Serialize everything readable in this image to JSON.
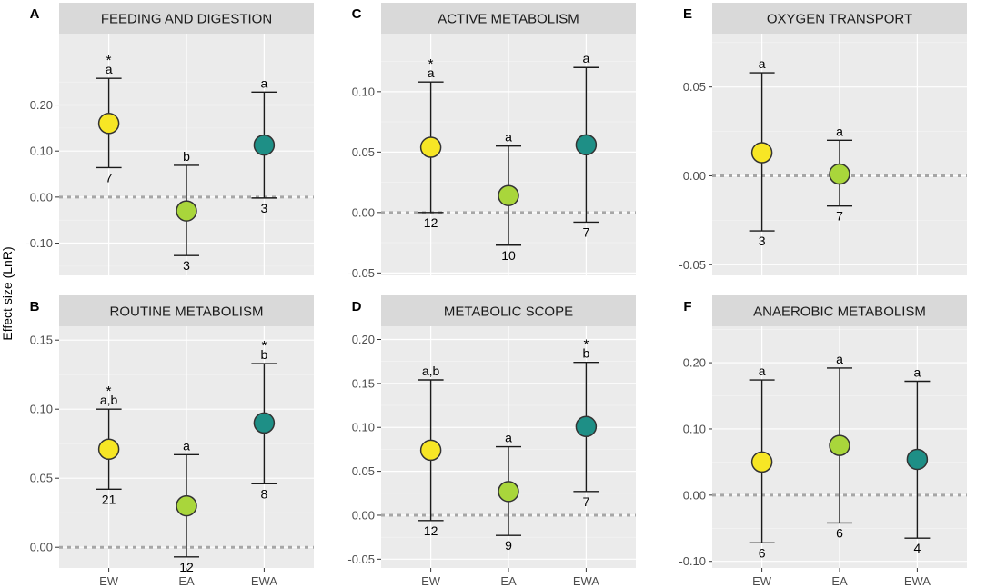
{
  "colors": {
    "EW": "#f7e625",
    "EA": "#a9d63b",
    "EWA": "#1e8f86",
    "panel_bg": "#ebebeb",
    "strip_bg": "#d9d9d9",
    "zero_line": "#a6a6a6"
  },
  "y_axis_title": "Effect size (LnR)",
  "chart_data": [
    {
      "type": "scatter",
      "letter": "A",
      "title": "FEEDING AND DIGESTION",
      "categories": [
        "EW",
        "EA",
        "EWA"
      ],
      "ylim": [
        -0.17,
        0.355
      ],
      "yticks": [
        -0.1,
        0.0,
        0.1,
        0.2
      ],
      "ytick_labels": [
        "-0.10",
        "0.00",
        "0.10",
        "0.20"
      ],
      "show_x_labels": false,
      "points": [
        {
          "category": "EW",
          "mean": 0.16,
          "lower": 0.064,
          "upper": 0.258,
          "n": "7",
          "letter": "a",
          "star": true
        },
        {
          "category": "EA",
          "mean": -0.03,
          "lower": -0.127,
          "upper": 0.069,
          "n": "3",
          "letter": "b",
          "star": false
        },
        {
          "category": "EWA",
          "mean": 0.113,
          "lower": -0.002,
          "upper": 0.228,
          "n": "3",
          "letter": "a",
          "star": false
        }
      ]
    },
    {
      "type": "scatter",
      "letter": "C",
      "title": "ACTIVE METABOLISM",
      "categories": [
        "EW",
        "EA",
        "EWA"
      ],
      "ylim": [
        -0.052,
        0.148
      ],
      "yticks": [
        -0.05,
        0.0,
        0.05,
        0.1
      ],
      "ytick_labels": [
        "-0.05",
        "0.00",
        "0.05",
        "0.10"
      ],
      "show_x_labels": false,
      "points": [
        {
          "category": "EW",
          "mean": 0.054,
          "lower": 0.0,
          "upper": 0.108,
          "n": "12",
          "letter": "a",
          "star": true
        },
        {
          "category": "EA",
          "mean": 0.014,
          "lower": -0.027,
          "upper": 0.055,
          "n": "10",
          "letter": "a",
          "star": false
        },
        {
          "category": "EWA",
          "mean": 0.056,
          "lower": -0.008,
          "upper": 0.12,
          "n": "7",
          "letter": "a",
          "star": false
        }
      ]
    },
    {
      "type": "scatter",
      "letter": "E",
      "title": "OXYGEN TRANSPORT",
      "categories": [
        "EW",
        "EA",
        "EWA"
      ],
      "ylim": [
        -0.056,
        0.08
      ],
      "yticks": [
        -0.05,
        0.0,
        0.05
      ],
      "ytick_labels": [
        "-0.05",
        "0.00",
        "0.05"
      ],
      "show_x_labels": false,
      "points": [
        {
          "category": "EW",
          "mean": 0.013,
          "lower": -0.031,
          "upper": 0.058,
          "n": "3",
          "letter": "a",
          "star": false
        },
        {
          "category": "EA",
          "mean": 0.001,
          "lower": -0.017,
          "upper": 0.02,
          "n": "7",
          "letter": "a",
          "star": false
        }
      ]
    },
    {
      "type": "scatter",
      "letter": "B",
      "title": "ROUTINE METABOLISM",
      "categories": [
        "EW",
        "EA",
        "EWA"
      ],
      "ylim": [
        -0.015,
        0.16
      ],
      "yticks": [
        0.0,
        0.05,
        0.1,
        0.15
      ],
      "ytick_labels": [
        "0.00",
        "0.05",
        "0.10",
        "0.15"
      ],
      "show_x_labels": true,
      "points": [
        {
          "category": "EW",
          "mean": 0.071,
          "lower": 0.042,
          "upper": 0.1,
          "n": "21",
          "letter": "a,b",
          "star": true
        },
        {
          "category": "EA",
          "mean": 0.03,
          "lower": -0.007,
          "upper": 0.067,
          "n": "12",
          "letter": "a",
          "star": false
        },
        {
          "category": "EWA",
          "mean": 0.09,
          "lower": 0.046,
          "upper": 0.133,
          "n": "8",
          "letter": "b",
          "star": true
        }
      ]
    },
    {
      "type": "scatter",
      "letter": "D",
      "title": "METABOLIC SCOPE",
      "categories": [
        "EW",
        "EA",
        "EWA"
      ],
      "ylim": [
        -0.06,
        0.215
      ],
      "yticks": [
        -0.05,
        0.0,
        0.05,
        0.1,
        0.15,
        0.2
      ],
      "ytick_labels": [
        "-0.05",
        "0.00",
        "0.05",
        "0.10",
        "0.15",
        "0.20"
      ],
      "show_x_labels": true,
      "points": [
        {
          "category": "EW",
          "mean": 0.074,
          "lower": -0.006,
          "upper": 0.154,
          "n": "12",
          "letter": "a,b",
          "star": false
        },
        {
          "category": "EA",
          "mean": 0.027,
          "lower": -0.023,
          "upper": 0.078,
          "n": "9",
          "letter": "a",
          "star": false
        },
        {
          "category": "EWA",
          "mean": 0.101,
          "lower": 0.027,
          "upper": 0.174,
          "n": "7",
          "letter": "b",
          "star": true
        }
      ]
    },
    {
      "type": "scatter",
      "letter": "F",
      "title": "ANAEROBIC METABOLISM",
      "categories": [
        "EW",
        "EA",
        "EWA"
      ],
      "ylim": [
        -0.11,
        0.255
      ],
      "yticks": [
        -0.1,
        0.0,
        0.1,
        0.2
      ],
      "ytick_labels": [
        "-0.10",
        "0.00",
        "0.10",
        "0.20"
      ],
      "show_x_labels": true,
      "points": [
        {
          "category": "EW",
          "mean": 0.05,
          "lower": -0.072,
          "upper": 0.174,
          "n": "6",
          "letter": "a",
          "star": false
        },
        {
          "category": "EA",
          "mean": 0.075,
          "lower": -0.042,
          "upper": 0.192,
          "n": "6",
          "letter": "a",
          "star": false
        },
        {
          "category": "EWA",
          "mean": 0.054,
          "lower": -0.065,
          "upper": 0.172,
          "n": "4",
          "letter": "a",
          "star": false
        }
      ]
    }
  ]
}
